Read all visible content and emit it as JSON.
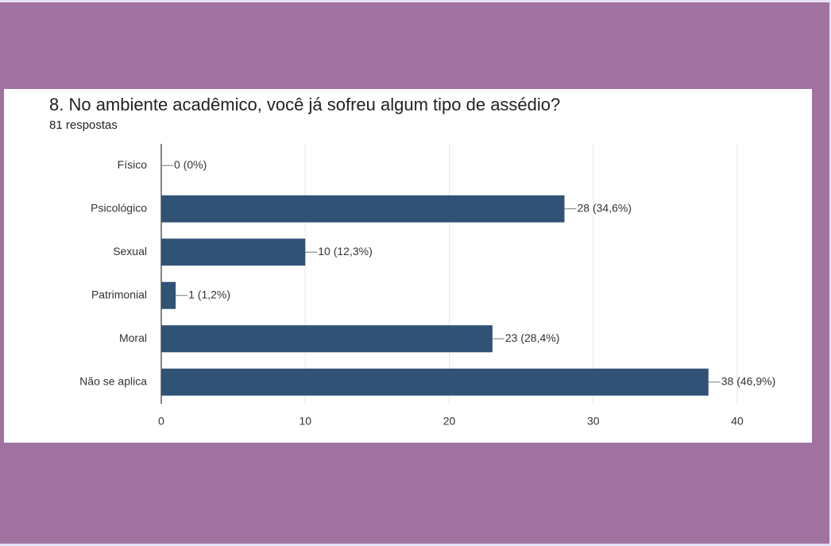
{
  "chart_data": {
    "type": "bar",
    "orientation": "horizontal",
    "title": "8. No ambiente acadêmico, você já sofreu algum tipo de assédio?",
    "subtitle": "81 respostas",
    "categories": [
      "Físico",
      "Psicológico",
      "Sexual",
      "Patrimonial",
      "Moral",
      "Não se aplica"
    ],
    "values": [
      0,
      28,
      10,
      1,
      23,
      38
    ],
    "value_labels": [
      "0 (0%)",
      "28 (34,6%)",
      "10 (12,3%)",
      "1 (1,2%)",
      "23 (28,4%)",
      "38 (46,9%)"
    ],
    "color": "#2f5275",
    "xlim": [
      0,
      40
    ],
    "xticks": [
      0,
      10,
      20,
      30,
      40
    ],
    "grid": true
  }
}
